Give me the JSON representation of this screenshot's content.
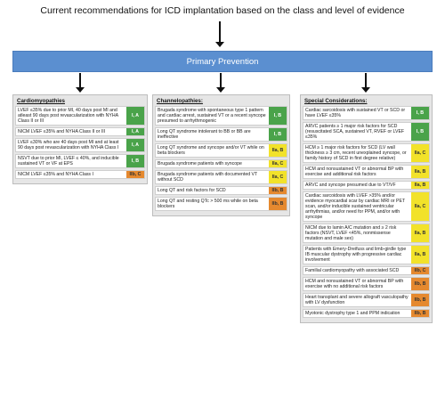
{
  "title": "Current recommendations for ICD implantation based on the class and level of evidence",
  "primary_label": "Primary Prevention",
  "colors": {
    "banner": "#5b8fd0",
    "class_I": "#4aa34a",
    "class_IIa": "#f2e22a",
    "class_IIb": "#e5892f"
  },
  "panels": [
    {
      "header": "Cardiomyopathies",
      "rows": [
        {
          "text": "LVEF ≤35% due to prior MI, 40 days post MI and atleast 90 days post revascularization with NYHA Class II or III",
          "cls": "I, A",
          "color": "green"
        },
        {
          "text": "NICM LVEF ≤35% and NYHA Class II or III",
          "cls": "I, A",
          "color": "green"
        },
        {
          "text": "LVEF ≤30% who are 40 days post MI and at least 90 days post revascularization with NYHA Class I",
          "cls": "I, A",
          "color": "green"
        },
        {
          "text": "NSVT due to prior MI, LVEF ≤ 40%, and inducible sustained VT or VF at EPS",
          "cls": "I, B",
          "color": "green"
        },
        {
          "text": "NICM LVEF ≤35% and NYHA Class I",
          "cls": "IIb, C",
          "color": "orange"
        }
      ]
    },
    {
      "header": "Channelopathies:",
      "rows": [
        {
          "text": "Brugada syndrome with spontaneous type 1 pattern and cardiac arrest, sustained VT or a recent syncope presumed to arrhythmogenic",
          "cls": "I, B",
          "color": "green"
        },
        {
          "text": "Long QT syndrome intolerant to BB or BB are ineffective",
          "cls": "I, B",
          "color": "green"
        },
        {
          "text": "Long QT syndrome and syncope and/or VT while on  beta blockers",
          "cls": "IIa, B",
          "color": "yellow"
        },
        {
          "text": "Brugada syndrome patients with syncope",
          "cls": "IIa, C",
          "color": "yellow"
        },
        {
          "text": "Brugada syndrome patients with documented VT without SCD",
          "cls": "IIa, C",
          "color": "yellow"
        },
        {
          "text": "Long QT and risk factors for SCD",
          "cls": "IIb, B",
          "color": "orange"
        },
        {
          "text": "Long QT and resting QTc > 500 ms while on beta blockers",
          "cls": "IIb, B",
          "color": "orange"
        }
      ]
    },
    {
      "header": "Special Considerations:",
      "rows": [
        {
          "text": "Cardiac sarcoidosis with sustained VT or SCD or have LVEF ≤35%",
          "cls": "I, B",
          "color": "green"
        },
        {
          "text": "ARVC patients ≥ 1 major risk factors for SCD (resuscitated SCA, sustained VT, RVEF or LVEF ≤35%",
          "cls": "I, B",
          "color": "green"
        },
        {
          "text": "HCM ≥ 1 major risk factors for SCD (LV wall thickness ≥ 3 cm, recent unexplained syncope, or family history of SCD in first degree relative)",
          "cls": "IIa, C",
          "color": "yellow"
        },
        {
          "text": "HCM and nonsustained VT or abnormal BP with exercise and additional risk factors",
          "cls": "IIa, B",
          "color": "yellow"
        },
        {
          "text": "ARVC and syncope presumed due to VT/VF",
          "cls": "IIa, B",
          "color": "yellow"
        },
        {
          "text": "Cardiac sarcoidosis with LVEF >35% and/or evidence myocardial scar by cardiac MRI or PET scan, and/or inducible sustained ventricular arrhythmias, and/or need for PPM, and/or with syncope",
          "cls": "IIa, C",
          "color": "yellow"
        },
        {
          "text": "NICM due to lamin A/C mutation and ≥ 2 risk factors (NSVT, LVEF <45%, nonmissense mutation and male sex)",
          "cls": "IIa, B",
          "color": "yellow"
        },
        {
          "text": "Patients with Emery-Dreifuss and limb-girdle type IB muscular dystrophy with progressive cardiac involvement",
          "cls": "IIa, B",
          "color": "yellow"
        },
        {
          "text": "Familial cardiomyopathy with associated SCD",
          "cls": "IIb, C",
          "color": "orange"
        },
        {
          "text": "HCM and nonsustained VT or abnormal BP with exercise with no additional risk factors",
          "cls": "IIb, B",
          "color": "orange"
        },
        {
          "text": "Heart transplant and severe allograft vasculopathy with LV dysfunction",
          "cls": "IIb, B",
          "color": "orange"
        },
        {
          "text": "Myotonic dystrophy type 1 and PPM indication",
          "cls": "IIb, B",
          "color": "orange"
        }
      ]
    }
  ]
}
